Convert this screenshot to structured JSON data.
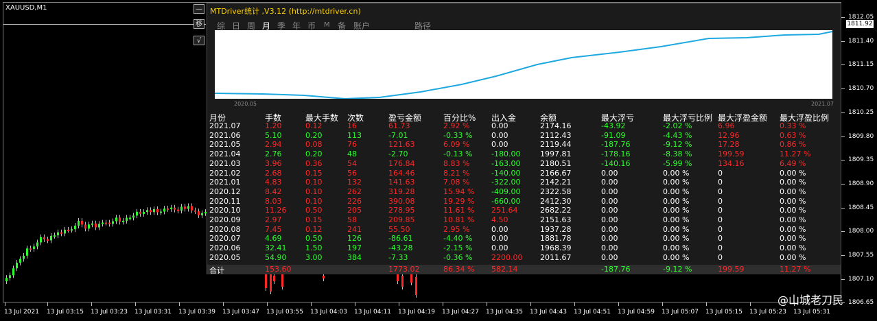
{
  "chart": {
    "symbol": "XAUUSD,M1",
    "current_price": "1811.92",
    "price_labels": [
      "1812.05",
      "1811.40",
      "1811.15",
      "1810.70",
      "1810.25",
      "1809.80",
      "1809.35",
      "1808.90",
      "1808.45",
      "1808.00",
      "1807.55",
      "1807.10",
      "1806.65"
    ],
    "time_labels": [
      "13 Jul 2021",
      "13 Jul 03:15",
      "13 Jul 03:23",
      "13 Jul 03:31",
      "13 Jul 03:39",
      "13 Jul 03:47",
      "13 Jul 03:55",
      "13 Jul 04:03",
      "13 Jul 04:11",
      "13 Jul 04:19",
      "13 Jul 04:27",
      "13 Jul 04:35",
      "13 Jul 04:43",
      "13 Jul 04:51",
      "13 Jul 04:59",
      "13 Jul 05:07",
      "13 Jul 05:15",
      "13 Jul 05:23",
      "13 Jul 05:31"
    ]
  },
  "panel": {
    "title": "MTDriver统计 ,V3.12 (http://mtdriver.cn)",
    "btn_minimize": "—",
    "btn_move": "移",
    "btn_check": "√",
    "tabs": [
      "综",
      "日",
      "周",
      "月",
      "季",
      "年",
      "币",
      "M",
      "备",
      "账户",
      "路径"
    ],
    "active_tab": "月",
    "mini_chart": {
      "start_label": "2020.05",
      "end_label": "2021.07"
    },
    "columns": [
      "月份",
      "手数",
      "最大手数",
      "次数",
      "盈亏金额",
      "百分比%",
      "出入金",
      "余额",
      "最大浮亏",
      "最大浮亏比例",
      "最大浮盈金额",
      "最大浮盈比例"
    ],
    "rows": [
      [
        "2021.07",
        "1.20",
        "0.12",
        "16",
        "61.73",
        "2.92 %",
        "0.00",
        "2174.16",
        "-43.92",
        "-2.02 %",
        "6.96",
        "0.33 %"
      ],
      [
        "2021.06",
        "5.10",
        "0.20",
        "113",
        "-7.01",
        "-0.33 %",
        "0.00",
        "2112.43",
        "-91.09",
        "-4.43 %",
        "12.96",
        "0.63 %"
      ],
      [
        "2021.05",
        "2.94",
        "0.08",
        "76",
        "121.63",
        "6.09 %",
        "0.00",
        "2119.44",
        "-187.76",
        "-9.12 %",
        "17.28",
        "0.86 %"
      ],
      [
        "2021.04",
        "2.76",
        "0.20",
        "48",
        "-2.70",
        "-0.13 %",
        "-180.00",
        "1997.81",
        "-178.16",
        "-8.38 %",
        "199.59",
        "11.27 %"
      ],
      [
        "2021.03",
        "3.96",
        "0.36",
        "54",
        "176.84",
        "8.83 %",
        "-163.00",
        "2180.51",
        "-140.16",
        "-5.99 %",
        "134.16",
        "6.49 %"
      ],
      [
        "2021.02",
        "2.68",
        "0.15",
        "56",
        "164.46",
        "8.21 %",
        "-140.00",
        "2166.67",
        "0.00",
        "0.00 %",
        "0",
        "0.00 %"
      ],
      [
        "2021.01",
        "4.83",
        "0.10",
        "132",
        "141.63",
        "7.08 %",
        "-322.00",
        "2142.21",
        "0.00",
        "0.00 %",
        "0",
        "0.00 %"
      ],
      [
        "2020.12",
        "8.42",
        "0.10",
        "262",
        "319.28",
        "15.94 %",
        "-409.00",
        "2322.58",
        "0.00",
        "0.00 %",
        "0",
        "0.00 %"
      ],
      [
        "2020.11",
        "8.03",
        "0.10",
        "226",
        "390.08",
        "19.29 %",
        "-660.00",
        "2412.30",
        "0.00",
        "0.00 %",
        "0",
        "0.00 %"
      ],
      [
        "2020.10",
        "11.26",
        "0.50",
        "205",
        "278.95",
        "11.61 %",
        "251.64",
        "2682.22",
        "0.00",
        "0.00 %",
        "0",
        "0.00 %"
      ],
      [
        "2020.09",
        "2.97",
        "0.15",
        "58",
        "209.85",
        "10.81 %",
        "4.50",
        "2151.63",
        "0.00",
        "0.00 %",
        "0",
        "0.00 %"
      ],
      [
        "2020.08",
        "7.45",
        "0.12",
        "241",
        "55.50",
        "2.95 %",
        "0.00",
        "1937.28",
        "0.00",
        "0.00 %",
        "0",
        "0.00 %"
      ],
      [
        "2020.07",
        "4.69",
        "0.50",
        "126",
        "-86.61",
        "-4.40 %",
        "0.00",
        "1881.78",
        "0.00",
        "0.00 %",
        "0",
        "0.00 %"
      ],
      [
        "2020.06",
        "32.41",
        "1.50",
        "197",
        "-43.28",
        "-2.15 %",
        "0.00",
        "1968.39",
        "0.00",
        "0.00 %",
        "0",
        "0.00 %"
      ],
      [
        "2020.05",
        "54.90",
        "3.00",
        "384",
        "-7.33",
        "-0.36 %",
        "2200.00",
        "2011.67",
        "0.00",
        "0.00 %",
        "0",
        "0.00 %"
      ]
    ],
    "total": [
      "合计",
      "153.60",
      "",
      "",
      "1773.02",
      "86.34 %",
      "582.14",
      "",
      "-187.76",
      "-9.12 %",
      "199.59",
      "11.27 %"
    ]
  },
  "watermark": "@山城老刀民",
  "colors": {
    "positive": "#ff2828",
    "negative": "#2cff2c",
    "neutral": "#ffffff",
    "title": "#ffd400",
    "curve": "#1ea8e0"
  }
}
